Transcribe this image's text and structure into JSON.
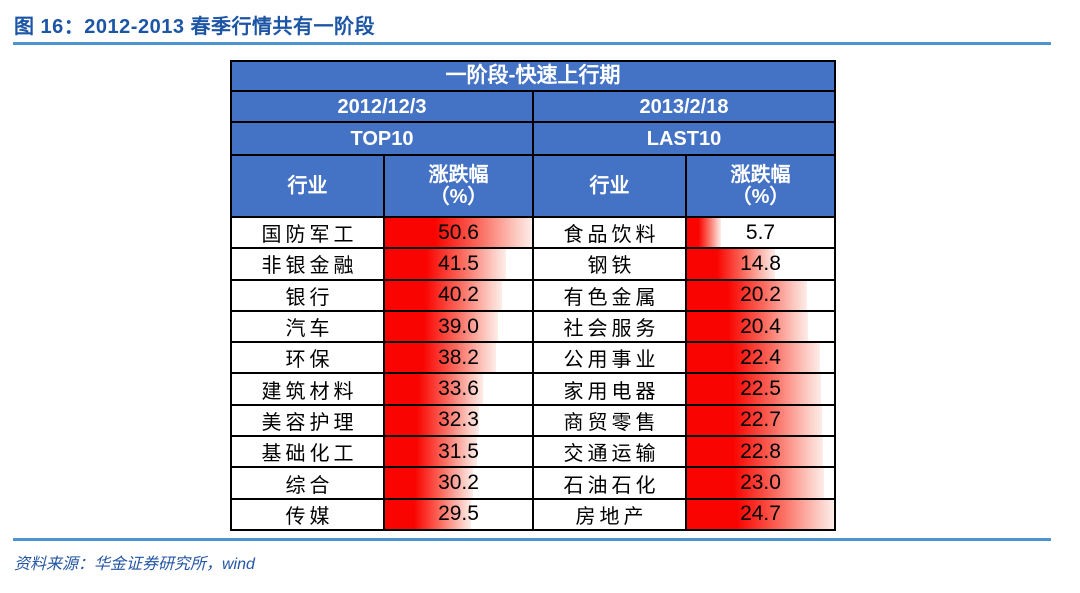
{
  "page": {
    "title": "图 16：2012-2013 春季行情共有一阶段",
    "source": "资料来源：华金证券研究所，wind"
  },
  "colors": {
    "header_blue": "#4472C4",
    "bar_red": "#F90400",
    "title_blue": "#1D55A5",
    "rule_blue": "#4E95D0",
    "border_black": "#000000"
  },
  "table": {
    "stage_title": "一阶段-快速上行期",
    "left": {
      "date": "2012/12/3",
      "group": "TOP10",
      "industry_header": "行业",
      "change_header_line1": "涨跌幅",
      "change_header_line2": "（%）",
      "max": 50.6,
      "rows": [
        {
          "name": "国防军工",
          "value": "50.6"
        },
        {
          "name": "非银金融",
          "value": "41.5"
        },
        {
          "name": "银行",
          "value": "40.2"
        },
        {
          "name": "汽车",
          "value": "39.0"
        },
        {
          "name": "环保",
          "value": "38.2"
        },
        {
          "name": "建筑材料",
          "value": "33.6"
        },
        {
          "name": "美容护理",
          "value": "32.3"
        },
        {
          "name": "基础化工",
          "value": "31.5"
        },
        {
          "name": "综合",
          "value": "30.2"
        },
        {
          "name": "传媒",
          "value": "29.5"
        }
      ]
    },
    "right": {
      "date": "2013/2/18",
      "group": "LAST10",
      "industry_header": "行业",
      "change_header_line1": "涨跌幅",
      "change_header_line2": "（%）",
      "max": 24.7,
      "rows": [
        {
          "name": "食品饮料",
          "value": "5.7"
        },
        {
          "name": "钢铁",
          "value": "14.8"
        },
        {
          "name": "有色金属",
          "value": "20.2"
        },
        {
          "name": "社会服务",
          "value": "20.4"
        },
        {
          "name": "公用事业",
          "value": "22.4"
        },
        {
          "name": "家用电器",
          "value": "22.5"
        },
        {
          "name": "商贸零售",
          "value": "22.7"
        },
        {
          "name": "交通运输",
          "value": "22.8"
        },
        {
          "name": "石油石化",
          "value": "23.0"
        },
        {
          "name": "房地产",
          "value": "24.7"
        }
      ]
    }
  },
  "chart_data": {
    "type": "table",
    "title": "一阶段-快速上行期",
    "groups": [
      {
        "date": "2012/12/3",
        "label": "TOP10",
        "columns": [
          "行业",
          "涨跌幅（%）"
        ],
        "rows": [
          [
            "国防军工",
            50.6
          ],
          [
            "非银金融",
            41.5
          ],
          [
            "银行",
            40.2
          ],
          [
            "汽车",
            39.0
          ],
          [
            "环保",
            38.2
          ],
          [
            "建筑材料",
            33.6
          ],
          [
            "美容护理",
            32.3
          ],
          [
            "基础化工",
            31.5
          ],
          [
            "综合",
            30.2
          ],
          [
            "传媒",
            29.5
          ]
        ]
      },
      {
        "date": "2013/2/18",
        "label": "LAST10",
        "columns": [
          "行业",
          "涨跌幅（%）"
        ],
        "rows": [
          [
            "食品饮料",
            5.7
          ],
          [
            "钢铁",
            14.8
          ],
          [
            "有色金属",
            20.2
          ],
          [
            "社会服务",
            20.4
          ],
          [
            "公用事业",
            22.4
          ],
          [
            "家用电器",
            22.5
          ],
          [
            "商贸零售",
            22.7
          ],
          [
            "交通运输",
            22.8
          ],
          [
            "石油石化",
            23.0
          ],
          [
            "房地产",
            24.7
          ]
        ]
      }
    ],
    "bar_style": "red-gradient-databar",
    "bar_scale": {
      "TOP10_max": 50.6,
      "LAST10_max": 24.7
    }
  }
}
